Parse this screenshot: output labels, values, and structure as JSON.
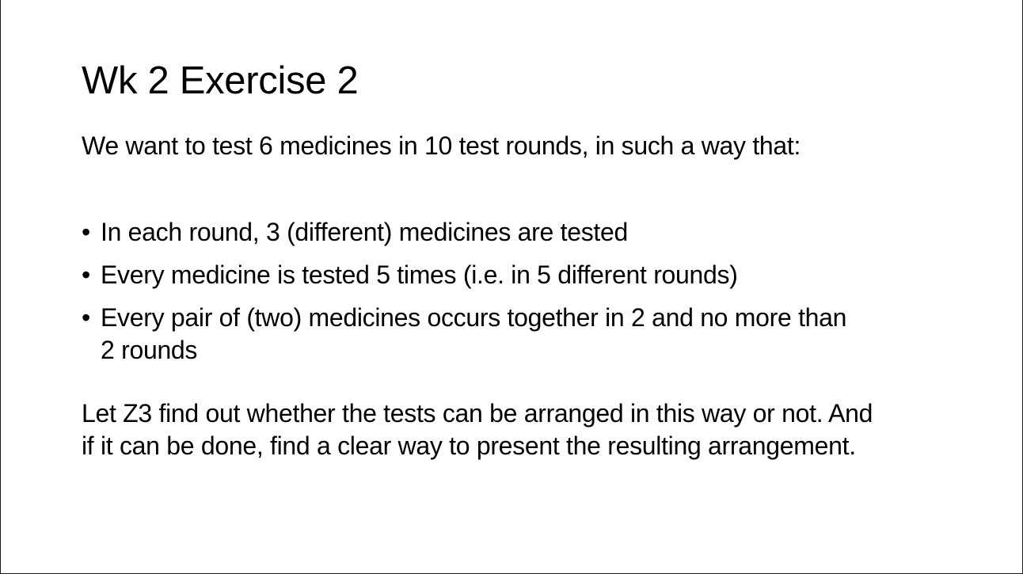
{
  "slide": {
    "title": "Wk 2 Exercise 2",
    "intro": "We want to test 6 medicines in 10 test rounds, in such a way that:",
    "bullet_glyph": "•",
    "bullets": [
      "In each round, 3 (different) medicines are tested",
      "Every medicine is tested 5 times (i.e. in 5 different rounds)",
      "Every pair of (two) medicines occurs together in 2 and no more than 2 rounds"
    ],
    "outro": "Let Z3 find out whether the tests can be arranged in this way or not. And if it can be done, find a clear way to present the resulting arrangement."
  }
}
